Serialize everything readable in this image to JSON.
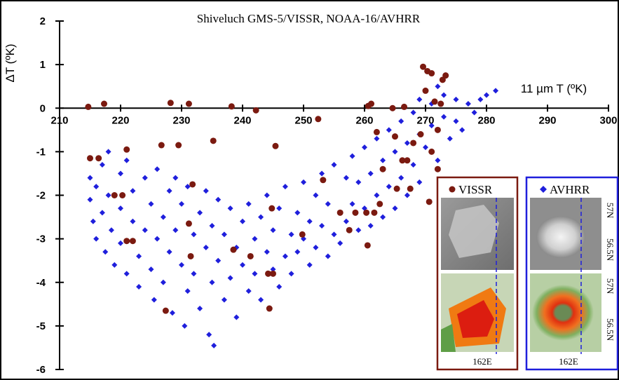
{
  "chart_data": {
    "type": "scatter",
    "title": "Shiveluch GMS-5/VISSR, NOAA-16/AVHRR",
    "x_label": "11 µm T (ºK)",
    "y_label": "ΔT (ºK)",
    "xlim": [
      210,
      300
    ],
    "ylim": [
      -6,
      2
    ],
    "xticks": [
      210,
      220,
      230,
      240,
      250,
      260,
      270,
      280,
      290,
      300
    ],
    "yticks": [
      -6,
      -5,
      -4,
      -3,
      -2,
      -1,
      0,
      1,
      2
    ],
    "inset_labels": [
      "57N",
      "56.5N",
      "162E"
    ],
    "series": [
      {
        "name": "VISSR",
        "color": "#7b1a10",
        "marker": "circle",
        "x": [
          214.7,
          217.3,
          228.2,
          231.2,
          238.2,
          242.2,
          252.4,
          260.6,
          261.1,
          264.6,
          266.5,
          269.6,
          270.3,
          271,
          273.3,
          272.8,
          270,
          271.5,
          272.5,
          215,
          216.4,
          221,
          226.7,
          229.5,
          235.2,
          245.4,
          262,
          265,
          268,
          271,
          267,
          272,
          219,
          220.3,
          222,
          221,
          231.2,
          231.8,
          231.5,
          238.5,
          241.3,
          244.2,
          245,
          244.8,
          244.4,
          227.4,
          249.8,
          253.2,
          256,
          258.5,
          260.3,
          261.6,
          260.5,
          262.5,
          265.3,
          267.5,
          263,
          266.2,
          270.6,
          272,
          269.2,
          257.5
        ],
        "values": [
          0.03,
          0.1,
          0.12,
          0.1,
          0.04,
          -0.05,
          -0.25,
          0.05,
          0.1,
          0,
          0.03,
          0.95,
          0.85,
          0.8,
          0.75,
          0.65,
          0.4,
          0.15,
          0.1,
          -1.15,
          -1.15,
          -0.95,
          -0.85,
          -0.85,
          -0.75,
          -0.87,
          -0.55,
          -0.65,
          -0.8,
          -1,
          -1.2,
          -1.4,
          -2,
          -2,
          -3.05,
          -3.05,
          -2.65,
          -1.75,
          -3.4,
          -3.25,
          -3.4,
          -3.8,
          -3.8,
          -2.3,
          -4.6,
          -4.65,
          -2.9,
          -1.65,
          -2.4,
          -2.4,
          -2.4,
          -2.4,
          -3.15,
          -2.2,
          -1.85,
          -1.85,
          -1.4,
          -1.2,
          -2.15,
          -0.5,
          -0.6,
          -2.8
        ]
      },
      {
        "name": "AVHRR",
        "color": "#1f1fdc",
        "marker": "diamond",
        "x": [
          215,
          215,
          215.5,
          216,
          216,
          217,
          217,
          217.5,
          218,
          218,
          218.5,
          219,
          220,
          220,
          220,
          221,
          221,
          222,
          222,
          223,
          223,
          224,
          224,
          225,
          225,
          225.5,
          226,
          226,
          227,
          227,
          228,
          228,
          228.5,
          229,
          229,
          230,
          230,
          230.5,
          231,
          231,
          232,
          232,
          233,
          233,
          234,
          234,
          234.5,
          235,
          235,
          235.3,
          236,
          236,
          237,
          237,
          238,
          238,
          239,
          239,
          240,
          240,
          241,
          241,
          242,
          242,
          243,
          243,
          244,
          244,
          245,
          245,
          246,
          246,
          247,
          247,
          248,
          248,
          249,
          249,
          250,
          250,
          251,
          251,
          252,
          252,
          253,
          253,
          254,
          254,
          255,
          255,
          256,
          256,
          257,
          257,
          258,
          258,
          259,
          259,
          260,
          260,
          261,
          261,
          262,
          262,
          263,
          263,
          264,
          264,
          265,
          265,
          266,
          266,
          267,
          267,
          268,
          268,
          269,
          269,
          269,
          270,
          270,
          271,
          271,
          272,
          272,
          273,
          273,
          274,
          275,
          275,
          276,
          277,
          278,
          279,
          280,
          281.5
        ],
        "values": [
          -1.6,
          -2.1,
          -2.6,
          -1.8,
          -3,
          -1.3,
          -2.4,
          -3.3,
          -1,
          -2,
          -2.8,
          -3.6,
          -1.5,
          -2.3,
          -3.1,
          -1.2,
          -3.8,
          -2.6,
          -1.9,
          -3.4,
          -4.1,
          -1.6,
          -2.8,
          -2.2,
          -3.7,
          -4.4,
          -1.4,
          -3,
          -2.5,
          -4,
          -1.9,
          -3.3,
          -4.7,
          -2.8,
          -1.6,
          -3.6,
          -2.2,
          -5,
          -4.2,
          -1.8,
          -2.9,
          -3.8,
          -2.4,
          -4.6,
          -3.2,
          -1.9,
          -5.2,
          -2.7,
          -4,
          -5.45,
          -3.5,
          -2.1,
          -4.4,
          -2.9,
          -3.9,
          -2.3,
          -3.2,
          -4.8,
          -2.6,
          -3.6,
          -4.2,
          -2.2,
          -3,
          -3.8,
          -2.5,
          -4.4,
          -3.3,
          -2,
          -3.7,
          -2.8,
          -4.1,
          -2.3,
          -3.4,
          -1.8,
          -2.9,
          -3.8,
          -2.4,
          -3.3,
          -1.7,
          -3,
          -2.6,
          -3.6,
          -2,
          -3.2,
          -1.5,
          -2.7,
          -3.4,
          -2.2,
          -1.3,
          -2.9,
          -2.4,
          -3.1,
          -1.6,
          -2.6,
          -1.1,
          -2.2,
          -2.8,
          -1.7,
          -0.9,
          -2.3,
          -1.5,
          -2.7,
          -0.7,
          -2,
          -1.2,
          -2.5,
          -0.5,
          -1.8,
          -1,
          -2.3,
          -0.3,
          -1.6,
          -0.8,
          -2,
          -0.1,
          -1.3,
          0.2,
          -0.6,
          -1.7,
          0.4,
          -0.9,
          0.1,
          -0.4,
          0.5,
          -1.2,
          -0.2,
          0.3,
          -0.7,
          0.2,
          -0.3,
          -0.5,
          0.1,
          -0.1,
          0.2,
          0.3,
          0.4
        ]
      }
    ]
  }
}
